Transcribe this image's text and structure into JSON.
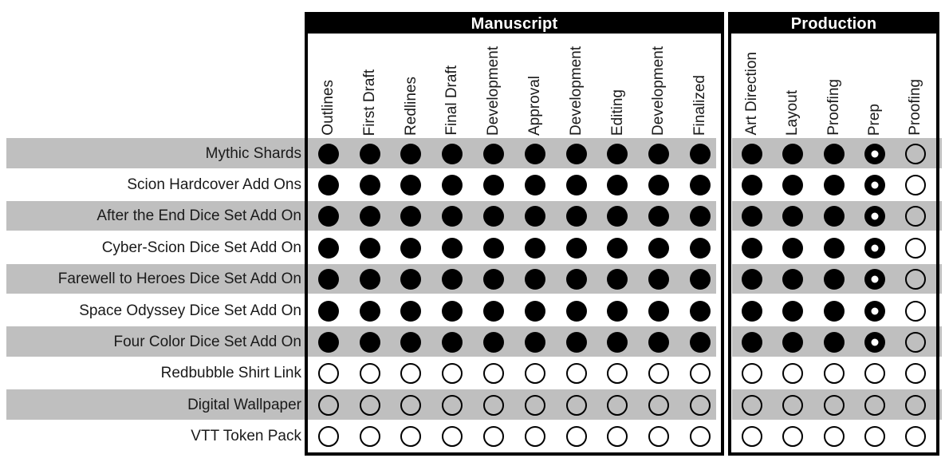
{
  "colors": {
    "row_stripe": "#bfbfbf",
    "section_header_bg": "#000000",
    "section_header_text": "#ffffff",
    "circle": "#000000"
  },
  "chart_data": {
    "type": "table",
    "title": "",
    "cell_state_icons": {
      "filled": "solid-black-circle-icon",
      "donut": "black-circle-white-center-icon",
      "empty": "hollow-circle-icon"
    },
    "sections": [
      {
        "title": "Manuscript",
        "columns": [
          "Outlines",
          "First Draft",
          "Redlines",
          "Final Draft",
          "Development",
          "Approval",
          "Development",
          "Editing",
          "Development",
          "Finalized"
        ]
      },
      {
        "title": "Production",
        "columns": [
          "Art Direction",
          "Layout",
          "Proofing",
          "Prep",
          "Proofing"
        ]
      }
    ],
    "rows": [
      {
        "label": "Mythic Shards",
        "manuscript": [
          "filled",
          "filled",
          "filled",
          "filled",
          "filled",
          "filled",
          "filled",
          "filled",
          "filled",
          "filled"
        ],
        "production": [
          "filled",
          "filled",
          "filled",
          "donut",
          "empty"
        ]
      },
      {
        "label": "Scion Hardcover Add Ons",
        "manuscript": [
          "filled",
          "filled",
          "filled",
          "filled",
          "filled",
          "filled",
          "filled",
          "filled",
          "filled",
          "filled"
        ],
        "production": [
          "filled",
          "filled",
          "filled",
          "donut",
          "empty"
        ]
      },
      {
        "label": "After the End Dice Set Add On",
        "manuscript": [
          "filled",
          "filled",
          "filled",
          "filled",
          "filled",
          "filled",
          "filled",
          "filled",
          "filled",
          "filled"
        ],
        "production": [
          "filled",
          "filled",
          "filled",
          "donut",
          "empty"
        ]
      },
      {
        "label": "Cyber-Scion Dice Set Add On",
        "manuscript": [
          "filled",
          "filled",
          "filled",
          "filled",
          "filled",
          "filled",
          "filled",
          "filled",
          "filled",
          "filled"
        ],
        "production": [
          "filled",
          "filled",
          "filled",
          "donut",
          "empty"
        ]
      },
      {
        "label": "Farewell to Heroes Dice Set Add On",
        "manuscript": [
          "filled",
          "filled",
          "filled",
          "filled",
          "filled",
          "filled",
          "filled",
          "filled",
          "filled",
          "filled"
        ],
        "production": [
          "filled",
          "filled",
          "filled",
          "donut",
          "empty"
        ]
      },
      {
        "label": "Space Odyssey Dice Set Add On",
        "manuscript": [
          "filled",
          "filled",
          "filled",
          "filled",
          "filled",
          "filled",
          "filled",
          "filled",
          "filled",
          "filled"
        ],
        "production": [
          "filled",
          "filled",
          "filled",
          "donut",
          "empty"
        ]
      },
      {
        "label": "Four Color Dice Set Add On",
        "manuscript": [
          "filled",
          "filled",
          "filled",
          "filled",
          "filled",
          "filled",
          "filled",
          "filled",
          "filled",
          "filled"
        ],
        "production": [
          "filled",
          "filled",
          "filled",
          "donut",
          "empty"
        ]
      },
      {
        "label": "Redbubble Shirt Link",
        "manuscript": [
          "empty",
          "empty",
          "empty",
          "empty",
          "empty",
          "empty",
          "empty",
          "empty",
          "empty",
          "empty"
        ],
        "production": [
          "empty",
          "empty",
          "empty",
          "empty",
          "empty"
        ]
      },
      {
        "label": "Digital Wallpaper",
        "manuscript": [
          "empty",
          "empty",
          "empty",
          "empty",
          "empty",
          "empty",
          "empty",
          "empty",
          "empty",
          "empty"
        ],
        "production": [
          "empty",
          "empty",
          "empty",
          "empty",
          "empty"
        ]
      },
      {
        "label": "VTT Token Pack",
        "manuscript": [
          "empty",
          "empty",
          "empty",
          "empty",
          "empty",
          "empty",
          "empty",
          "empty",
          "empty",
          "empty"
        ],
        "production": [
          "empty",
          "empty",
          "empty",
          "empty",
          "empty"
        ]
      }
    ]
  }
}
